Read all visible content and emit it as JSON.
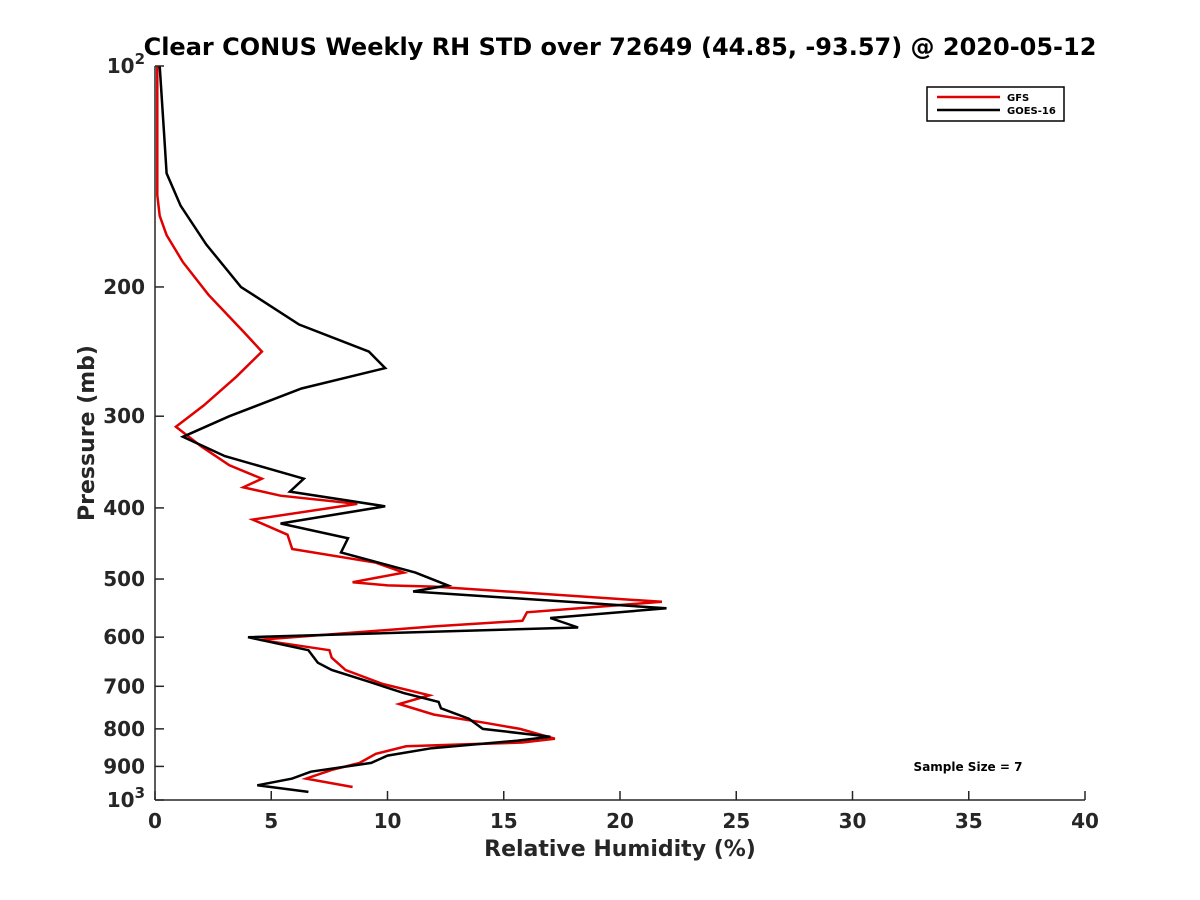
{
  "chart_data": {
    "type": "line",
    "title": "Clear CONUS Weekly RH STD over 72649 (44.85, -93.57) @ 2020-05-12",
    "xlabel": "Relative Humidity (%)",
    "ylabel": "Pressure (mb)",
    "xlim": [
      0,
      40
    ],
    "ylim": [
      100,
      1000
    ],
    "yscale": "log",
    "y_reversed": true,
    "grid": false,
    "legend_placement": "top-right",
    "x_ticks": [
      "0",
      "5",
      "10",
      "15",
      "20",
      "25",
      "30",
      "35",
      "40"
    ],
    "y_ticks": [
      {
        "value": 100,
        "base": "10",
        "exp": "2"
      },
      {
        "value": 200,
        "label": "200"
      },
      {
        "value": 300,
        "label": "300"
      },
      {
        "value": 400,
        "label": "400"
      },
      {
        "value": 500,
        "label": "500"
      },
      {
        "value": 600,
        "label": "600"
      },
      {
        "value": 700,
        "label": "700"
      },
      {
        "value": 800,
        "label": "800"
      },
      {
        "value": 900,
        "label": "900"
      },
      {
        "value": 1000,
        "base": "10",
        "exp": "3"
      }
    ],
    "annotation": "Sample Size = 7",
    "series": [
      {
        "name": "GFS",
        "color": "#e00000",
        "points": [
          [
            0.1,
            100
          ],
          [
            0.1,
            125
          ],
          [
            0.1,
            150
          ],
          [
            0.2,
            160
          ],
          [
            0.5,
            170
          ],
          [
            1.2,
            185
          ],
          [
            2.3,
            205
          ],
          [
            3.8,
            230
          ],
          [
            4.6,
            245
          ],
          [
            3.5,
            265
          ],
          [
            2.1,
            290
          ],
          [
            0.9,
            310
          ],
          [
            2.0,
            330
          ],
          [
            3.2,
            350
          ],
          [
            4.6,
            365
          ],
          [
            3.8,
            375
          ],
          [
            5.4,
            385
          ],
          [
            8.7,
            395
          ],
          [
            4.2,
            415
          ],
          [
            5.7,
            435
          ],
          [
            5.9,
            455
          ],
          [
            9.5,
            475
          ],
          [
            10.7,
            490
          ],
          [
            8.5,
            505
          ],
          [
            10.0,
            510
          ],
          [
            12.0,
            512
          ],
          [
            21.8,
            537
          ],
          [
            16.0,
            555
          ],
          [
            15.8,
            570
          ],
          [
            12.0,
            580
          ],
          [
            4.5,
            605
          ],
          [
            7.5,
            625
          ],
          [
            7.6,
            640
          ],
          [
            8.2,
            665
          ],
          [
            9.8,
            695
          ],
          [
            11.8,
            720
          ],
          [
            10.5,
            740
          ],
          [
            12.0,
            765
          ],
          [
            14.2,
            785
          ],
          [
            15.7,
            800
          ],
          [
            17.2,
            825
          ],
          [
            15.8,
            835
          ],
          [
            10.8,
            845
          ],
          [
            9.5,
            865
          ],
          [
            8.8,
            890
          ],
          [
            7.6,
            910
          ],
          [
            6.5,
            935
          ],
          [
            8.5,
            960
          ]
        ]
      },
      {
        "name": "GOES-16",
        "color": "#000000",
        "points": [
          [
            0.2,
            100
          ],
          [
            0.4,
            125
          ],
          [
            0.5,
            140
          ],
          [
            1.1,
            155
          ],
          [
            2.2,
            175
          ],
          [
            3.7,
            200
          ],
          [
            6.2,
            225
          ],
          [
            9.2,
            245
          ],
          [
            9.9,
            258
          ],
          [
            6.3,
            275
          ],
          [
            3.2,
            300
          ],
          [
            1.2,
            320
          ],
          [
            3.0,
            340
          ],
          [
            6.4,
            365
          ],
          [
            5.8,
            380
          ],
          [
            9.9,
            398
          ],
          [
            5.4,
            420
          ],
          [
            8.3,
            440
          ],
          [
            8.0,
            460
          ],
          [
            11.2,
            490
          ],
          [
            12.6,
            510
          ],
          [
            11.1,
            520
          ],
          [
            22.0,
            548
          ],
          [
            17.0,
            565
          ],
          [
            18.2,
            582
          ],
          [
            4.0,
            600
          ],
          [
            6.6,
            625
          ],
          [
            7.0,
            650
          ],
          [
            7.6,
            665
          ],
          [
            9.2,
            690
          ],
          [
            10.7,
            715
          ],
          [
            12.2,
            735
          ],
          [
            12.3,
            750
          ],
          [
            13.5,
            775
          ],
          [
            14.1,
            800
          ],
          [
            17.0,
            820
          ],
          [
            15.6,
            830
          ],
          [
            11.9,
            850
          ],
          [
            10.0,
            870
          ],
          [
            9.3,
            890
          ],
          [
            6.7,
            915
          ],
          [
            5.9,
            935
          ],
          [
            4.4,
            955
          ],
          [
            6.6,
            975
          ]
        ]
      }
    ]
  }
}
